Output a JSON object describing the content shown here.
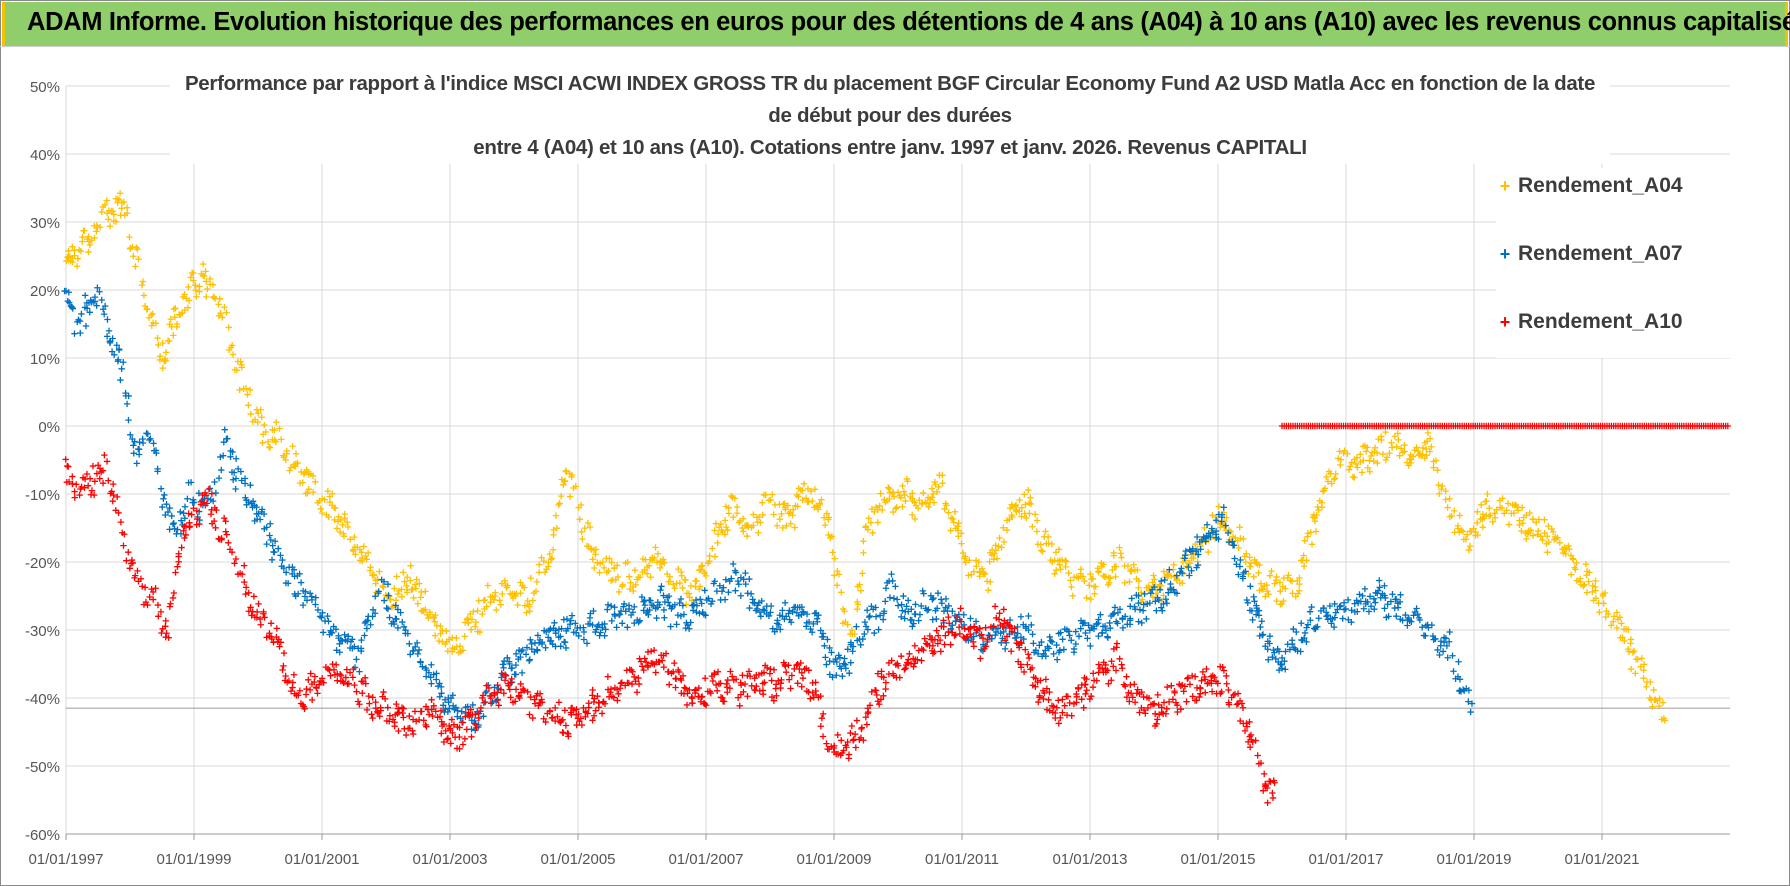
{
  "banner": {
    "title": "ADAM Informe. Evolution historique des performances en euros pour des détentions de 4 ans (A04) à 10 ans (A10) avec les revenus connus capitalisés"
  },
  "colors": {
    "banner_bg": "#8fce6a",
    "banner_edge": "#f2c200",
    "grid": "#d9d9d9",
    "axis_text": "#555555",
    "A04": "#ffc000",
    "A07": "#0070c0",
    "A10": "#ff0000"
  },
  "chart_data": {
    "type": "scatter",
    "title_lines": [
      "Performance par rapport à l'indice MSCI ACWI INDEX GROSS TR  du placement BGF Circular Economy Fund A2 USD Matla Acc en fonction de la date",
      "de début pour des durées",
      "entre 4 (A04) et 10 ans (A10).  Cotations entre janv. 1997 et janv. 2026. Revenus CAPITALI"
    ],
    "xlim": [
      1997.0,
      2023.0
    ],
    "ylim": [
      -60,
      50
    ],
    "y_ticks": [
      50,
      40,
      30,
      20,
      10,
      0,
      -10,
      -20,
      -30,
      -40,
      -50,
      -60
    ],
    "y_tick_labels": [
      "50%",
      "40%",
      "30%",
      "20%",
      "10%",
      "0%",
      "-10%",
      "-20%",
      "-30%",
      "-40%",
      "-50%",
      "-60%"
    ],
    "x_ticks": [
      1997,
      1999,
      2001,
      2003,
      2005,
      2007,
      2009,
      2011,
      2013,
      2015,
      2017,
      2019,
      2021
    ],
    "x_tick_labels": [
      "01/01/1997",
      "01/01/1999",
      "01/01/2001",
      "01/01/2003",
      "01/01/2005",
      "01/01/2007",
      "01/01/2009",
      "01/01/2011",
      "01/01/2013",
      "01/01/2015",
      "01/01/2017",
      "01/01/2019",
      "01/01/2021"
    ],
    "legend_position": "right",
    "series": [
      {
        "name": "Rendement_A04",
        "key": "A04",
        "points": [
          [
            1997.0,
            24
          ],
          [
            1997.3,
            27
          ],
          [
            1997.6,
            31
          ],
          [
            1997.9,
            33
          ],
          [
            1998.2,
            20
          ],
          [
            1998.5,
            10
          ],
          [
            1998.8,
            18
          ],
          [
            1999.1,
            22
          ],
          [
            1999.4,
            18
          ],
          [
            1999.7,
            8
          ],
          [
            2000.0,
            0
          ],
          [
            2000.3,
            -2
          ],
          [
            2000.6,
            -6
          ],
          [
            2000.9,
            -10
          ],
          [
            2001.2,
            -13
          ],
          [
            2001.5,
            -17
          ],
          [
            2001.8,
            -22
          ],
          [
            2002.1,
            -25
          ],
          [
            2002.4,
            -22
          ],
          [
            2002.7,
            -28
          ],
          [
            2003.0,
            -33
          ],
          [
            2003.3,
            -30
          ],
          [
            2003.6,
            -26
          ],
          [
            2003.9,
            -24
          ],
          [
            2004.2,
            -26
          ],
          [
            2004.6,
            -18
          ],
          [
            2004.8,
            -6
          ],
          [
            2005.0,
            -12
          ],
          [
            2005.3,
            -20
          ],
          [
            2005.6,
            -22
          ],
          [
            2005.9,
            -22
          ],
          [
            2006.2,
            -20
          ],
          [
            2006.5,
            -22
          ],
          [
            2006.8,
            -25
          ],
          [
            2007.1,
            -18
          ],
          [
            2007.4,
            -12
          ],
          [
            2007.7,
            -15
          ],
          [
            2008.0,
            -11
          ],
          [
            2008.3,
            -14
          ],
          [
            2008.6,
            -9
          ],
          [
            2008.9,
            -14
          ],
          [
            2009.1,
            -25
          ],
          [
            2009.3,
            -33
          ],
          [
            2009.5,
            -15
          ],
          [
            2009.8,
            -11
          ],
          [
            2010.1,
            -10
          ],
          [
            2010.4,
            -12
          ],
          [
            2010.6,
            -8
          ],
          [
            2010.9,
            -15
          ],
          [
            2011.1,
            -20
          ],
          [
            2011.4,
            -22
          ],
          [
            2011.7,
            -14
          ],
          [
            2012.0,
            -11
          ],
          [
            2012.3,
            -18
          ],
          [
            2012.6,
            -21
          ],
          [
            2012.9,
            -24
          ],
          [
            2013.2,
            -22
          ],
          [
            2013.5,
            -20
          ],
          [
            2013.8,
            -24
          ],
          [
            2014.1,
            -24
          ],
          [
            2014.4,
            -22
          ],
          [
            2014.8,
            -17
          ],
          [
            2015.0,
            -14
          ],
          [
            2015.3,
            -17
          ],
          [
            2015.6,
            -22
          ],
          [
            2015.9,
            -24
          ],
          [
            2016.2,
            -24
          ],
          [
            2016.5,
            -14
          ],
          [
            2016.8,
            -6
          ],
          [
            2017.1,
            -5
          ],
          [
            2017.4,
            -5
          ],
          [
            2017.7,
            -2
          ],
          [
            2018.0,
            -5
          ],
          [
            2018.3,
            -3
          ],
          [
            2018.6,
            -12
          ],
          [
            2018.9,
            -17
          ],
          [
            2019.2,
            -12
          ],
          [
            2019.5,
            -12
          ],
          [
            2019.8,
            -14
          ],
          [
            2020.1,
            -16
          ],
          [
            2020.4,
            -18
          ],
          [
            2020.7,
            -22
          ],
          [
            2021.0,
            -26
          ],
          [
            2021.3,
            -30
          ],
          [
            2021.6,
            -36
          ],
          [
            2021.8,
            -40
          ],
          [
            2022.0,
            -42
          ]
        ]
      },
      {
        "name": "Rendement_A07",
        "key": "A07",
        "points": [
          [
            1997.0,
            18
          ],
          [
            1997.2,
            15
          ],
          [
            1997.5,
            20
          ],
          [
            1997.7,
            12
          ],
          [
            1997.9,
            8
          ],
          [
            1998.1,
            -5
          ],
          [
            1998.3,
            0
          ],
          [
            1998.5,
            -10
          ],
          [
            1998.7,
            -16
          ],
          [
            1998.9,
            -10
          ],
          [
            1999.1,
            -12
          ],
          [
            1999.3,
            -10
          ],
          [
            1999.5,
            -2
          ],
          [
            1999.7,
            -8
          ],
          [
            2000.0,
            -13
          ],
          [
            2000.2,
            -17
          ],
          [
            2000.5,
            -22
          ],
          [
            2000.8,
            -25
          ],
          [
            2001.0,
            -28
          ],
          [
            2001.3,
            -32
          ],
          [
            2001.6,
            -34
          ],
          [
            2001.9,
            -24
          ],
          [
            2002.2,
            -28
          ],
          [
            2002.5,
            -34
          ],
          [
            2002.8,
            -38
          ],
          [
            2003.1,
            -42
          ],
          [
            2003.4,
            -43
          ],
          [
            2003.6,
            -40
          ],
          [
            2003.9,
            -36
          ],
          [
            2004.2,
            -34
          ],
          [
            2004.5,
            -31
          ],
          [
            2004.8,
            -30
          ],
          [
            2005.1,
            -30
          ],
          [
            2005.4,
            -29
          ],
          [
            2005.7,
            -28
          ],
          [
            2006.0,
            -27
          ],
          [
            2006.3,
            -26
          ],
          [
            2006.6,
            -28
          ],
          [
            2006.9,
            -27
          ],
          [
            2007.2,
            -24
          ],
          [
            2007.5,
            -22
          ],
          [
            2007.8,
            -26
          ],
          [
            2008.1,
            -29
          ],
          [
            2008.4,
            -27
          ],
          [
            2008.7,
            -28
          ],
          [
            2009.0,
            -36
          ],
          [
            2009.2,
            -35
          ],
          [
            2009.4,
            -30
          ],
          [
            2009.7,
            -28
          ],
          [
            2009.9,
            -24
          ],
          [
            2010.2,
            -28
          ],
          [
            2010.5,
            -26
          ],
          [
            2010.8,
            -27
          ],
          [
            2011.1,
            -30
          ],
          [
            2011.4,
            -32
          ],
          [
            2011.7,
            -31
          ],
          [
            2012.0,
            -30
          ],
          [
            2012.3,
            -33
          ],
          [
            2012.6,
            -32
          ],
          [
            2012.9,
            -30
          ],
          [
            2013.2,
            -30
          ],
          [
            2013.5,
            -28
          ],
          [
            2013.8,
            -27
          ],
          [
            2014.1,
            -25
          ],
          [
            2014.4,
            -22
          ],
          [
            2014.7,
            -18
          ],
          [
            2014.9,
            -15
          ],
          [
            2015.1,
            -14
          ],
          [
            2015.3,
            -20
          ],
          [
            2015.6,
            -28
          ],
          [
            2015.9,
            -35
          ],
          [
            2016.2,
            -32
          ],
          [
            2016.5,
            -28
          ],
          [
            2016.8,
            -28
          ],
          [
            2017.1,
            -27
          ],
          [
            2017.4,
            -25
          ],
          [
            2017.7,
            -26
          ],
          [
            2018.0,
            -28
          ],
          [
            2018.3,
            -30
          ],
          [
            2018.6,
            -32
          ],
          [
            2018.8,
            -38
          ],
          [
            2019.0,
            -42
          ]
        ]
      },
      {
        "name": "Rendement_A10",
        "key": "A10",
        "points": [
          [
            1997.0,
            -7
          ],
          [
            1997.2,
            -9
          ],
          [
            1997.4,
            -8
          ],
          [
            1997.6,
            -6
          ],
          [
            1997.8,
            -12
          ],
          [
            1998.0,
            -20
          ],
          [
            1998.2,
            -24
          ],
          [
            1998.4,
            -26
          ],
          [
            1998.6,
            -30
          ],
          [
            1998.8,
            -16
          ],
          [
            1999.0,
            -13
          ],
          [
            1999.2,
            -11
          ],
          [
            1999.4,
            -15
          ],
          [
            1999.6,
            -18
          ],
          [
            1999.8,
            -24
          ],
          [
            2000.0,
            -28
          ],
          [
            2000.3,
            -32
          ],
          [
            2000.6,
            -40
          ],
          [
            2000.9,
            -38
          ],
          [
            2001.2,
            -36
          ],
          [
            2001.5,
            -38
          ],
          [
            2001.8,
            -41
          ],
          [
            2002.1,
            -42
          ],
          [
            2002.4,
            -44
          ],
          [
            2002.7,
            -42
          ],
          [
            2003.0,
            -46
          ],
          [
            2003.3,
            -44
          ],
          [
            2003.6,
            -40
          ],
          [
            2003.9,
            -38
          ],
          [
            2004.2,
            -40
          ],
          [
            2004.5,
            -42
          ],
          [
            2004.8,
            -44
          ],
          [
            2005.1,
            -42
          ],
          [
            2005.4,
            -40
          ],
          [
            2005.7,
            -38
          ],
          [
            2006.0,
            -36
          ],
          [
            2006.3,
            -34
          ],
          [
            2006.6,
            -38
          ],
          [
            2006.9,
            -40
          ],
          [
            2007.2,
            -38
          ],
          [
            2007.5,
            -39
          ],
          [
            2007.8,
            -37
          ],
          [
            2008.1,
            -38
          ],
          [
            2008.4,
            -36
          ],
          [
            2008.7,
            -38
          ],
          [
            2008.9,
            -46
          ],
          [
            2009.1,
            -48
          ],
          [
            2009.4,
            -45
          ],
          [
            2009.6,
            -40
          ],
          [
            2009.9,
            -36
          ],
          [
            2010.2,
            -34
          ],
          [
            2010.5,
            -32
          ],
          [
            2010.8,
            -30
          ],
          [
            2011.0,
            -29
          ],
          [
            2011.3,
            -32
          ],
          [
            2011.6,
            -28
          ],
          [
            2011.9,
            -33
          ],
          [
            2012.2,
            -38
          ],
          [
            2012.5,
            -42
          ],
          [
            2012.8,
            -40
          ],
          [
            2013.1,
            -38
          ],
          [
            2013.4,
            -34
          ],
          [
            2013.7,
            -40
          ],
          [
            2014.0,
            -42
          ],
          [
            2014.3,
            -40
          ],
          [
            2014.6,
            -38
          ],
          [
            2014.9,
            -37
          ],
          [
            2015.2,
            -39
          ],
          [
            2015.5,
            -45
          ],
          [
            2015.7,
            -52
          ],
          [
            2015.9,
            -55
          ]
        ]
      },
      {
        "name": "Rendement_A10 (zero segment)",
        "key": "A10",
        "points": [
          [
            2016.0,
            0
          ],
          [
            2023.0,
            0
          ]
        ]
      }
    ],
    "reference_line": {
      "y": -41.5,
      "xlim": [
        1997.0,
        2023.0
      ]
    }
  },
  "legend": {
    "items": [
      {
        "label": "Rendement_A04",
        "key": "A04"
      },
      {
        "label": "Rendement_A07",
        "key": "A07"
      },
      {
        "label": "Rendement_A10",
        "key": "A10"
      }
    ],
    "marker": "+"
  }
}
